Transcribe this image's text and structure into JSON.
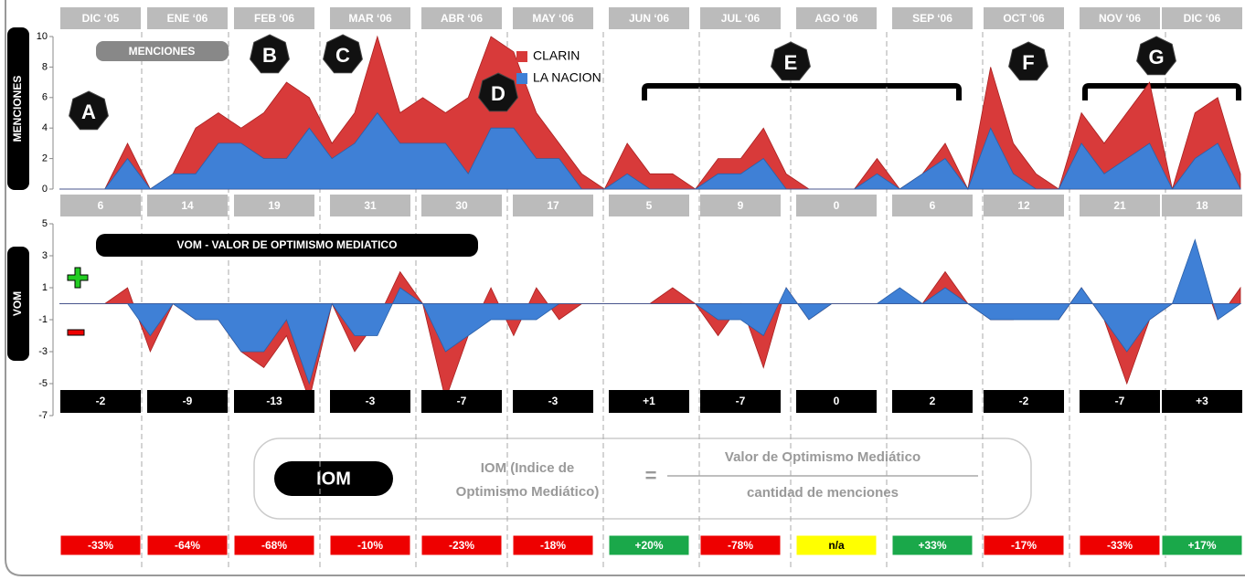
{
  "chart_data": [
    {
      "type": "area",
      "title": "MENCIONES",
      "ylabel": "MENCIONES",
      "categories": [
        null,
        null,
        null,
        null,
        null,
        null,
        null,
        null,
        null,
        null,
        null,
        null,
        null,
        null,
        null,
        null,
        null,
        null,
        null,
        null,
        null,
        null,
        null,
        null,
        null,
        null,
        null,
        null,
        null,
        null,
        null,
        null,
        null,
        null,
        null,
        null,
        null,
        null,
        null,
        null,
        null,
        null,
        null,
        null,
        null,
        null,
        null,
        null,
        null,
        null,
        null,
        null,
        null
      ],
      "ylim": [
        0,
        10
      ],
      "yticks": [
        0,
        2,
        4,
        6,
        8,
        10
      ],
      "legend": "top-center",
      "series": [
        {
          "name": "CLARIN",
          "color": "#d83a3a",
          "values": [
            0,
            0,
            0,
            3,
            0,
            1,
            4,
            5,
            4,
            5,
            7,
            6,
            3,
            5,
            10,
            5,
            6,
            5,
            6,
            10,
            9,
            5,
            3,
            1,
            0,
            3,
            1,
            1,
            0,
            2,
            2,
            4,
            1,
            0,
            0,
            0,
            2,
            0,
            1,
            3,
            0,
            8,
            3,
            1,
            0,
            5,
            3,
            5,
            7,
            0,
            5,
            6,
            1
          ]
        },
        {
          "name": "LA NACION",
          "color": "#3f80d6",
          "values": [
            0,
            0,
            0,
            2,
            0,
            1,
            1,
            3,
            3,
            2,
            2,
            4,
            2,
            3,
            5,
            3,
            3,
            3,
            1,
            4,
            4,
            2,
            2,
            0,
            0,
            1,
            0,
            0,
            0,
            1,
            1,
            2,
            0,
            0,
            0,
            0,
            1,
            0,
            1,
            2,
            0,
            4,
            1,
            0,
            0,
            3,
            1,
            2,
            3,
            0,
            2,
            3,
            0
          ]
        }
      ]
    },
    {
      "type": "area",
      "title": "VOM - VALOR DE OPTIMISMO MEDIATICO",
      "ylabel": "VOM",
      "categories": [
        null,
        null,
        null,
        null,
        null,
        null,
        null,
        null,
        null,
        null,
        null,
        null,
        null,
        null,
        null,
        null,
        null,
        null,
        null,
        null,
        null,
        null,
        null,
        null,
        null,
        null,
        null,
        null,
        null,
        null,
        null,
        null,
        null,
        null,
        null,
        null,
        null,
        null,
        null,
        null,
        null,
        null,
        null,
        null,
        null,
        null,
        null,
        null,
        null,
        null,
        null,
        null,
        null
      ],
      "ylim": [
        -7,
        5
      ],
      "yticks": [
        -7,
        -5,
        -3,
        -1,
        1,
        3,
        5
      ],
      "series": [
        {
          "name": "CLARIN",
          "color": "#d83a3a",
          "values": [
            0,
            0,
            0,
            1,
            -3,
            0,
            -1,
            -1,
            -3,
            -4,
            -2,
            -6,
            0,
            -3,
            -1,
            2,
            0,
            -6,
            -2,
            1,
            -2,
            1,
            -1,
            0,
            0,
            0,
            0,
            1,
            0,
            -2,
            0,
            -4,
            1,
            -1,
            0,
            0,
            0,
            0,
            0,
            2,
            0,
            -1,
            -1,
            0,
            -1,
            1,
            -1,
            -5,
            -1,
            0,
            3,
            -1,
            1
          ]
        },
        {
          "name": "LA NACION",
          "color": "#3f80d6",
          "values": [
            0,
            0,
            0,
            0,
            -2,
            0,
            -1,
            -1,
            -3,
            -3,
            -1,
            -5,
            0,
            -2,
            -2,
            1,
            0,
            -3,
            -2,
            -1,
            -1,
            -1,
            0,
            0,
            0,
            0,
            0,
            0,
            0,
            -1,
            -1,
            -2,
            1,
            -1,
            0,
            0,
            0,
            1,
            0,
            1,
            0,
            -1,
            -1,
            -1,
            -1,
            1,
            -1,
            -3,
            -1,
            0,
            4,
            -1,
            0
          ]
        }
      ]
    }
  ],
  "months": [
    "DIC ‘05",
    "ENE ‘06",
    "FEB ‘06",
    "MAR ‘06",
    "ABR ‘06",
    "MAY ‘06",
    "JUN ‘06",
    "JUL ‘06",
    "AGO ‘06",
    "SEP ‘06",
    "OCT ‘06",
    "NOV ‘06",
    "DIC ‘06"
  ],
  "mentions": [
    6,
    14,
    19,
    31,
    30,
    17,
    5,
    9,
    0,
    6,
    12,
    21,
    18
  ],
  "vom_totals": [
    "-2",
    "-9",
    "-13",
    "-3",
    "-7",
    "-3",
    "+1",
    "-7",
    "0",
    "2",
    "-2",
    "-7",
    "+3"
  ],
  "annotations": [
    "A",
    "B",
    "C",
    "D",
    "E",
    "F",
    "G"
  ],
  "iom": {
    "label": "IOM",
    "name": [
      "IOM (Indice de",
      "Optimismo Mediático)"
    ],
    "equals": "=",
    "numerator": "Valor de Optimismo Mediático",
    "denominator": "cantidad de menciones"
  },
  "iom_values": [
    {
      "label": "-33%",
      "color": "#ee0000"
    },
    {
      "label": "-64%",
      "color": "#ee0000"
    },
    {
      "label": "-68%",
      "color": "#ee0000"
    },
    {
      "label": "-10%",
      "color": "#ee0000"
    },
    {
      "label": "-23%",
      "color": "#ee0000"
    },
    {
      "label": "-18%",
      "color": "#ee0000"
    },
    {
      "label": "+20%",
      "color": "#1aa84a"
    },
    {
      "label": "-78%",
      "color": "#ee0000"
    },
    {
      "label": "n/a",
      "color": "#ffff00"
    },
    {
      "label": "+33%",
      "color": "#1aa84a"
    },
    {
      "label": "-17%",
      "color": "#ee0000"
    },
    {
      "label": "-33%",
      "color": "#ee0000"
    },
    {
      "label": "+17%",
      "color": "#1aa84a"
    }
  ]
}
